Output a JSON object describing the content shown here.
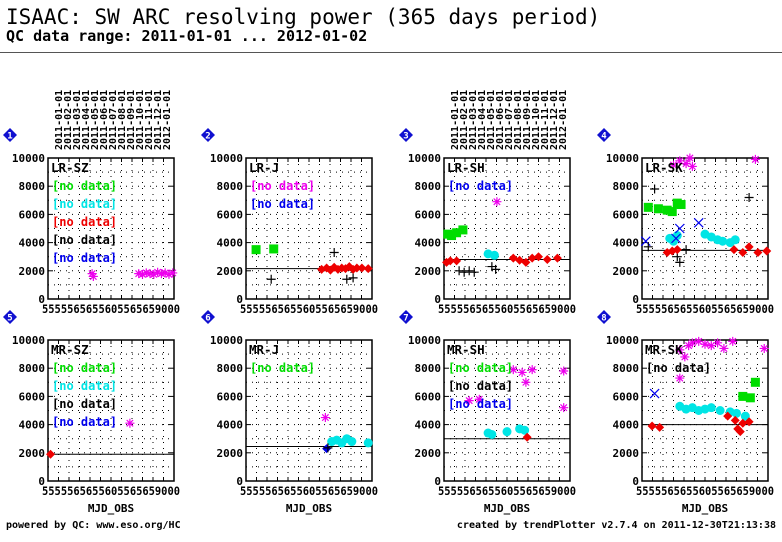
{
  "header": {
    "title": "ISAAC: SW ARC resolving power (365 days period)",
    "subtitle": "QC data range: 2011-01-01 ... 2012-01-02"
  },
  "footer": {
    "left": "powered by QC: www.eso.org/HC",
    "right": "created by trendPlotter v2.7.4 on 2011-12-30T21:13:38"
  },
  "colors": {
    "green": "#00dd00",
    "cyan": "#00e5e5",
    "red": "#ee0000",
    "black": "#000000",
    "blue": "#0000ee",
    "magenta": "#ee00ee",
    "badge": "#1010d0"
  },
  "date_ticks": [
    "2011-01-01",
    "2011-02-01",
    "2011-03-01",
    "2011-04-01",
    "2011-05-01",
    "2011-06-01",
    "2011-07-01",
    "2011-08-01",
    "2011-09-01",
    "2011-10-01",
    "2011-11-01",
    "2011-12-01",
    "2012-01-01"
  ],
  "chart_data": [
    {
      "badge": "1",
      "name": "LR-SZ",
      "type": "scatter",
      "ylim": [
        0,
        10000
      ],
      "yticks": [
        "0",
        "2000",
        "4000",
        "6000",
        "8000",
        "10000"
      ],
      "xtick_text": "5555565655605565659000",
      "xlabel": "",
      "grid": true,
      "ref_line": null,
      "legend": [
        {
          "text": "[no data]",
          "color": "green"
        },
        {
          "text": "[no data]",
          "color": "cyan"
        },
        {
          "text": "[no data]",
          "color": "red"
        },
        {
          "text": "[no data]",
          "color": "black"
        },
        {
          "text": "[no data]",
          "color": "blue"
        }
      ],
      "series": [
        {
          "color": "magenta",
          "marker": "asterisk",
          "points": [
            [
              0.35,
              1800
            ],
            [
              0.36,
              1600
            ],
            [
              0.72,
              1800
            ],
            [
              0.75,
              1750
            ],
            [
              0.78,
              1850
            ],
            [
              0.81,
              1800
            ],
            [
              0.84,
              1750
            ],
            [
              0.87,
              1900
            ],
            [
              0.9,
              1800
            ],
            [
              0.93,
              1850
            ],
            [
              0.96,
              1750
            ],
            [
              0.99,
              1850
            ]
          ]
        }
      ]
    },
    {
      "badge": "2",
      "name": "LR-J",
      "type": "scatter",
      "ylim": [
        0,
        10000
      ],
      "yticks": [
        "0",
        "2000",
        "4000",
        "6000",
        "8000",
        "10000"
      ],
      "xtick_text": "5555565655605565659000",
      "xlabel": "",
      "grid": true,
      "ref_line": 2150,
      "legend": [
        {
          "text": "[no data]",
          "color": "magenta"
        },
        {
          "text": "[no data]",
          "color": "blue"
        }
      ],
      "series": [
        {
          "color": "green",
          "marker": "square",
          "points": [
            [
              0.08,
              3500
            ],
            [
              0.22,
              3550
            ]
          ]
        },
        {
          "color": "black",
          "marker": "plus",
          "points": [
            [
              0.2,
              1400
            ],
            [
              0.7,
              3300
            ],
            [
              0.8,
              1400
            ],
            [
              0.85,
              1500
            ]
          ]
        },
        {
          "color": "red",
          "marker": "diamond",
          "points": [
            [
              0.6,
              2100
            ],
            [
              0.64,
              2200
            ],
            [
              0.67,
              2050
            ],
            [
              0.7,
              2250
            ],
            [
              0.73,
              2100
            ],
            [
              0.76,
              2200
            ],
            [
              0.79,
              2150
            ],
            [
              0.82,
              2300
            ],
            [
              0.85,
              2100
            ],
            [
              0.88,
              2200
            ],
            [
              0.92,
              2200
            ],
            [
              0.97,
              2150
            ]
          ]
        }
      ]
    },
    {
      "badge": "3",
      "name": "LR-SH",
      "type": "scatter",
      "ylim": [
        0,
        10000
      ],
      "yticks": [
        "0",
        "2000",
        "4000",
        "6000",
        "8000",
        "10000"
      ],
      "xtick_text": "5555565655605565659000",
      "xlabel": "",
      "grid": true,
      "ref_line": 2800,
      "legend": [
        {
          "text": "[no data]",
          "color": "blue"
        }
      ],
      "series": [
        {
          "color": "green",
          "marker": "square",
          "points": [
            [
              0.03,
              4600
            ],
            [
              0.06,
              4500
            ],
            [
              0.1,
              4700
            ],
            [
              0.15,
              4900
            ]
          ]
        },
        {
          "color": "magenta",
          "marker": "asterisk",
          "points": [
            [
              0.42,
              6900
            ]
          ]
        },
        {
          "color": "cyan",
          "marker": "circle",
          "points": [
            [
              0.35,
              3200
            ],
            [
              0.4,
              3100
            ]
          ]
        },
        {
          "color": "black",
          "marker": "plus",
          "points": [
            [
              0.12,
              2000
            ],
            [
              0.16,
              1900
            ],
            [
              0.2,
              2000
            ],
            [
              0.24,
              1900
            ],
            [
              0.38,
              2300
            ],
            [
              0.41,
              2100
            ]
          ]
        },
        {
          "color": "red",
          "marker": "diamond",
          "points": [
            [
              0.02,
              2600
            ],
            [
              0.05,
              2700
            ],
            [
              0.1,
              2700
            ],
            [
              0.55,
              2900
            ],
            [
              0.6,
              2750
            ],
            [
              0.65,
              2600
            ],
            [
              0.7,
              2900
            ],
            [
              0.75,
              3000
            ],
            [
              0.82,
              2800
            ],
            [
              0.9,
              2900
            ]
          ]
        }
      ]
    },
    {
      "badge": "4",
      "name": "LR-SK",
      "type": "scatter",
      "ylim": [
        0,
        10000
      ],
      "yticks": [
        "0",
        "2000",
        "4000",
        "6000",
        "8000",
        "10000"
      ],
      "xtick_text": "5555565655605565659000",
      "xlabel": "",
      "grid": true,
      "ref_line": 3450,
      "legend": [],
      "series": [
        {
          "color": "green",
          "marker": "square",
          "points": [
            [
              0.05,
              6500
            ],
            [
              0.13,
              6400
            ],
            [
              0.2,
              6300
            ],
            [
              0.24,
              6200
            ],
            [
              0.28,
              6800
            ],
            [
              0.31,
              6700
            ]
          ]
        },
        {
          "color": "cyan",
          "marker": "circle",
          "points": [
            [
              0.22,
              4300
            ],
            [
              0.25,
              4100
            ],
            [
              0.28,
              4500
            ],
            [
              0.5,
              4600
            ],
            [
              0.55,
              4400
            ],
            [
              0.6,
              4200
            ],
            [
              0.64,
              4100
            ],
            [
              0.7,
              4000
            ],
            [
              0.74,
              4200
            ]
          ]
        },
        {
          "color": "blue",
          "marker": "cross",
          "points": [
            [
              0.03,
              4100
            ],
            [
              0.27,
              4300
            ],
            [
              0.3,
              5000
            ],
            [
              0.45,
              5400
            ]
          ]
        },
        {
          "color": "black",
          "marker": "plus",
          "points": [
            [
              0.05,
              3700
            ],
            [
              0.1,
              7800
            ],
            [
              0.28,
              3000
            ],
            [
              0.3,
              2600
            ],
            [
              0.35,
              3500
            ],
            [
              0.85,
              7200
            ]
          ]
        },
        {
          "color": "red",
          "marker": "diamond",
          "points": [
            [
              0.2,
              3300
            ],
            [
              0.24,
              3400
            ],
            [
              0.28,
              3500
            ],
            [
              0.73,
              3500
            ],
            [
              0.8,
              3300
            ],
            [
              0.85,
              3700
            ],
            [
              0.92,
              3300
            ],
            [
              0.99,
              3400
            ]
          ]
        },
        {
          "color": "magenta",
          "marker": "asterisk",
          "points": [
            [
              0.25,
              9500
            ],
            [
              0.3,
              9800
            ],
            [
              0.35,
              9600
            ],
            [
              0.4,
              9400
            ],
            [
              0.38,
              10000
            ],
            [
              0.9,
              9900
            ]
          ]
        }
      ]
    },
    {
      "badge": "5",
      "name": "MR-SZ",
      "type": "scatter",
      "ylim": [
        0,
        10000
      ],
      "yticks": [
        "0",
        "2000",
        "4000",
        "6000",
        "8000",
        "10000"
      ],
      "xtick_text": "5555565655605565659000",
      "xlabel": "MJD_OBS",
      "grid": true,
      "ref_line": 1900,
      "legend": [
        {
          "text": "[no data]",
          "color": "green"
        },
        {
          "text": "[no data]",
          "color": "cyan"
        },
        {
          "text": "[no data]",
          "color": "black"
        },
        {
          "text": "[no data]",
          "color": "blue"
        }
      ],
      "series": [
        {
          "color": "red",
          "marker": "diamond",
          "points": [
            [
              0.02,
              1900
            ]
          ]
        },
        {
          "color": "magenta",
          "marker": "asterisk",
          "points": [
            [
              0.65,
              4100
            ]
          ]
        }
      ]
    },
    {
      "badge": "6",
      "name": "MR-J",
      "type": "scatter",
      "ylim": [
        0,
        10000
      ],
      "yticks": [
        "0",
        "2000",
        "4000",
        "6000",
        "8000",
        "10000"
      ],
      "xtick_text": "5555565655605565659000",
      "xlabel": "MJD_OBS",
      "grid": true,
      "ref_line": 2450,
      "legend": [
        {
          "text": "[no data]",
          "color": "green"
        }
      ],
      "series": [
        {
          "color": "magenta",
          "marker": "asterisk",
          "points": [
            [
              0.63,
              4500
            ]
          ]
        },
        {
          "color": "cyan",
          "marker": "circle",
          "points": [
            [
              0.68,
              2800
            ],
            [
              0.72,
              2900
            ],
            [
              0.76,
              2700
            ],
            [
              0.8,
              3000
            ],
            [
              0.84,
              2800
            ],
            [
              0.97,
              2700
            ]
          ]
        },
        {
          "color": "blue",
          "marker": "diamond",
          "points": [
            [
              0.64,
              2300
            ]
          ]
        },
        {
          "color": "black",
          "marker": "plus",
          "points": [
            [
              0.65,
              2350
            ]
          ]
        }
      ]
    },
    {
      "badge": "7",
      "name": "MR-SH",
      "type": "scatter",
      "ylim": [
        0,
        10000
      ],
      "yticks": [
        "0",
        "2000",
        "4000",
        "6000",
        "8000",
        "10000"
      ],
      "xtick_text": "5555565655605565659000",
      "xlabel": "MJD_OBS",
      "grid": true,
      "ref_line": 3000,
      "legend": [
        {
          "text": "[no data]",
          "color": "green"
        },
        {
          "text": "[no data]",
          "color": "black"
        },
        {
          "text": "[no data]",
          "color": "blue"
        }
      ],
      "series": [
        {
          "color": "magenta",
          "marker": "asterisk",
          "points": [
            [
              0.2,
              5700
            ],
            [
              0.28,
              5800
            ],
            [
              0.55,
              7900
            ],
            [
              0.62,
              7700
            ],
            [
              0.7,
              7900
            ],
            [
              0.95,
              7800
            ],
            [
              0.95,
              5200
            ],
            [
              0.65,
              7000
            ]
          ]
        },
        {
          "color": "cyan",
          "marker": "circle",
          "points": [
            [
              0.35,
              3400
            ],
            [
              0.38,
              3300
            ],
            [
              0.5,
              3500
            ],
            [
              0.6,
              3700
            ],
            [
              0.64,
              3600
            ]
          ]
        },
        {
          "color": "red",
          "marker": "diamond",
          "points": [
            [
              0.66,
              3100
            ]
          ]
        }
      ]
    },
    {
      "badge": "8",
      "name": "MR-SK",
      "type": "scatter",
      "ylim": [
        0,
        10000
      ],
      "yticks": [
        "0",
        "2000",
        "4000",
        "6000",
        "8000",
        "10000"
      ],
      "xtick_text": "5555565655605565659000",
      "xlabel": "MJD_OBS",
      "grid": true,
      "ref_line": 4000,
      "legend": [
        {
          "text": "[no data]",
          "color": "black"
        }
      ],
      "series": [
        {
          "color": "blue",
          "marker": "cross",
          "points": [
            [
              0.1,
              6200
            ]
          ]
        },
        {
          "color": "cyan",
          "marker": "circle",
          "points": [
            [
              0.3,
              5300
            ],
            [
              0.35,
              5100
            ],
            [
              0.4,
              5200
            ],
            [
              0.45,
              5000
            ],
            [
              0.5,
              5100
            ],
            [
              0.55,
              5200
            ],
            [
              0.62,
              5000
            ],
            [
              0.7,
              4900
            ],
            [
              0.75,
              4800
            ],
            [
              0.82,
              4600
            ]
          ]
        },
        {
          "color": "green",
          "marker": "square",
          "points": [
            [
              0.8,
              6000
            ],
            [
              0.86,
              5900
            ],
            [
              0.9,
              7000
            ]
          ]
        },
        {
          "color": "red",
          "marker": "diamond",
          "points": [
            [
              0.08,
              3900
            ],
            [
              0.14,
              3800
            ],
            [
              0.68,
              4600
            ],
            [
              0.74,
              4300
            ],
            [
              0.76,
              3700
            ],
            [
              0.78,
              3500
            ],
            [
              0.8,
              4100
            ],
            [
              0.85,
              4200
            ]
          ]
        },
        {
          "color": "magenta",
          "marker": "asterisk",
          "points": [
            [
              0.3,
              9300
            ],
            [
              0.34,
              8800
            ],
            [
              0.37,
              9600
            ],
            [
              0.4,
              9800
            ],
            [
              0.45,
              9900
            ],
            [
              0.5,
              9700
            ],
            [
              0.55,
              9600
            ],
            [
              0.6,
              9800
            ],
            [
              0.65,
              9400
            ],
            [
              0.72,
              9900
            ],
            [
              0.97,
              9400
            ],
            [
              0.3,
              7300
            ]
          ]
        }
      ]
    }
  ]
}
